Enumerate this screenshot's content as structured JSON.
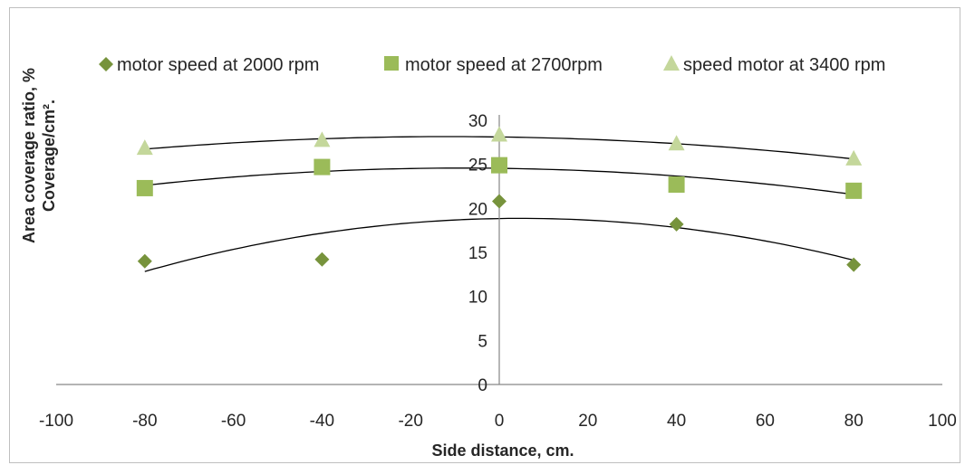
{
  "chart_data": {
    "type": "scatter",
    "title": "",
    "xlabel": "Side distance, cm.",
    "ylabel_line1": "Area coverage  ratio, %",
    "ylabel_line2": "Coverage/cm².",
    "xlim": [
      -100,
      100
    ],
    "ylim": [
      0,
      30
    ],
    "x_ticks": [
      -100,
      -80,
      -60,
      -40,
      -20,
      0,
      20,
      40,
      60,
      80,
      100
    ],
    "y_ticks": [
      0,
      5,
      10,
      15,
      20,
      25,
      30
    ],
    "legend_position": "top",
    "grid": false,
    "trendlines": true,
    "series": [
      {
        "name": "motor speed at 2000 rpm",
        "marker": "diamond",
        "color": "#77933c",
        "x": [
          -80,
          -40,
          0,
          40,
          80
        ],
        "y": [
          14.0,
          14.2,
          20.8,
          18.2,
          13.6
        ]
      },
      {
        "name": "motor speed at 2700rpm",
        "marker": "square",
        "color": "#9bbb59",
        "x": [
          -80,
          -40,
          0,
          40,
          80
        ],
        "y": [
          22.3,
          24.7,
          24.9,
          22.7,
          22.0
        ]
      },
      {
        "name": "speed motor at 3400 rpm",
        "marker": "triangle",
        "color": "#c4d79b",
        "x": [
          -80,
          -40,
          0,
          40,
          80
        ],
        "y": [
          26.8,
          27.7,
          28.3,
          27.3,
          25.6
        ]
      }
    ]
  }
}
